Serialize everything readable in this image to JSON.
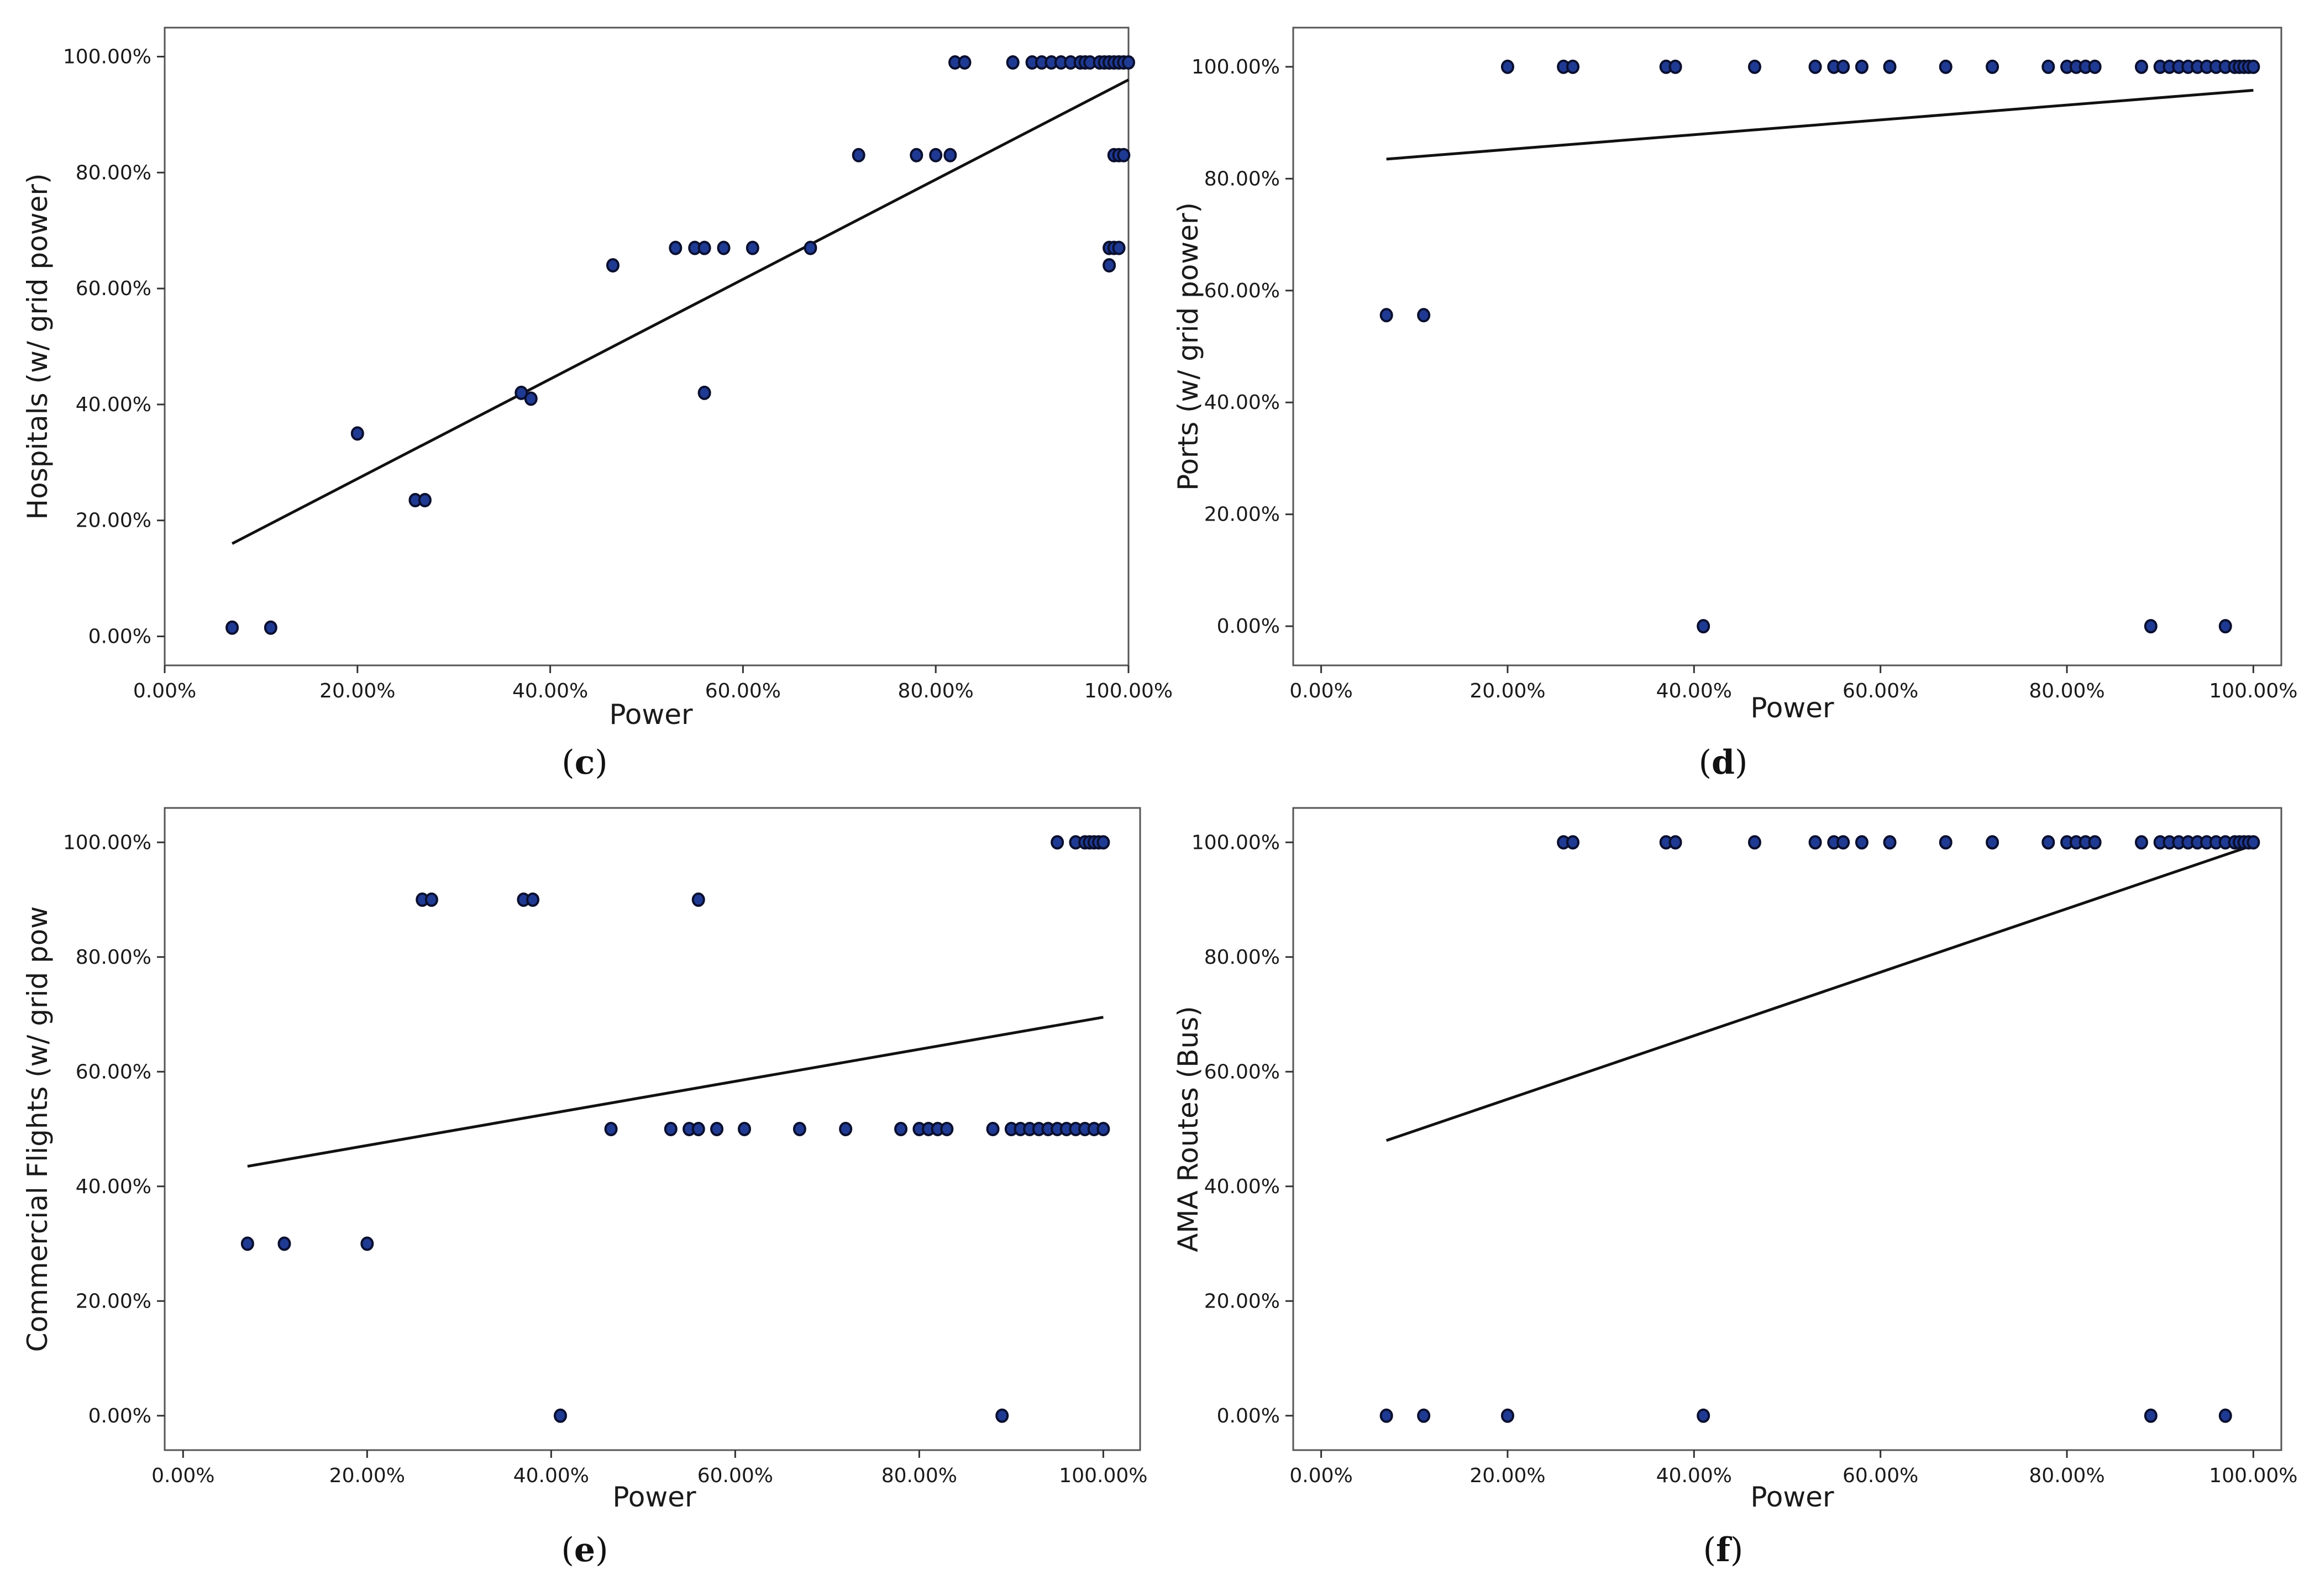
{
  "chart_data": [
    {
      "id": "c",
      "type": "scatter",
      "panel_label": "c",
      "xlabel": "Power",
      "ylabel": "Hospitals (w/ grid power)",
      "xlim": [
        0,
        100
      ],
      "ylim": [
        -5,
        105
      ],
      "xticks": [
        0,
        20,
        40,
        60,
        80,
        100
      ],
      "yticks": [
        0,
        20,
        40,
        60,
        80,
        100
      ],
      "xtick_labels": [
        "0.00%",
        "20.00%",
        "40.00%",
        "60.00%",
        "80.00%",
        "100.00%"
      ],
      "ytick_labels": [
        "0.00%",
        "20.00%",
        "40.00%",
        "60.00%",
        "80.00%",
        "100.00%"
      ],
      "x": [
        7,
        11,
        20,
        26,
        27,
        37,
        38,
        46.5,
        53,
        55,
        56,
        56,
        58,
        61,
        67,
        72,
        78,
        80,
        81.5,
        82,
        83,
        88,
        90,
        91,
        92,
        93,
        94,
        95,
        95.5,
        96,
        97,
        97.5,
        98,
        98,
        98,
        98.5,
        99,
        99,
        99.5,
        100,
        98.5,
        99,
        99.5,
        98,
        98.5,
        99
      ],
      "y": [
        1.5,
        1.5,
        35,
        23.5,
        23.5,
        42,
        41,
        64,
        67,
        67,
        67,
        42,
        67,
        67,
        67,
        83,
        83,
        83,
        83,
        99,
        99,
        99,
        99,
        99,
        99,
        99,
        99,
        99,
        99,
        99,
        99,
        99,
        99,
        99,
        64,
        99,
        99,
        99,
        99,
        99,
        83,
        83,
        83,
        67,
        67,
        67
      ],
      "fit": {
        "x": [
          7,
          100
        ],
        "y": [
          16,
          96
        ]
      }
    },
    {
      "id": "d",
      "type": "scatter",
      "panel_label": "d",
      "xlabel": "Power",
      "ylabel": "Ports (w/ grid power)",
      "xlim": [
        -3,
        103
      ],
      "ylim": [
        -7,
        107
      ],
      "xticks": [
        0,
        20,
        40,
        60,
        80,
        100
      ],
      "yticks": [
        0,
        20,
        40,
        60,
        80,
        100
      ],
      "xtick_labels": [
        "0.00%",
        "20.00%",
        "40.00%",
        "60.00%",
        "80.00%",
        "100.00%"
      ],
      "ytick_labels": [
        "0.00%",
        "20.00%",
        "40.00%",
        "60.00%",
        "80.00%",
        "100.00%"
      ],
      "x": [
        7,
        11,
        20,
        26,
        27,
        37,
        38,
        41,
        46.5,
        53,
        55,
        56,
        58,
        61,
        67,
        72,
        78,
        80,
        81,
        82,
        83,
        88,
        89,
        90,
        91,
        92,
        93,
        94,
        95,
        96,
        97,
        97,
        98,
        98.5,
        99,
        99.5,
        100
      ],
      "y": [
        55.6,
        55.6,
        100,
        100,
        100,
        100,
        100,
        0,
        100,
        100,
        100,
        100,
        100,
        100,
        100,
        100,
        100,
        100,
        100,
        100,
        100,
        100,
        0,
        100,
        100,
        100,
        100,
        100,
        100,
        100,
        100,
        0,
        100,
        100,
        100,
        100,
        100
      ],
      "fit": {
        "x": [
          7,
          100
        ],
        "y": [
          83.5,
          95.8
        ]
      }
    },
    {
      "id": "e",
      "type": "scatter",
      "panel_label": "e",
      "xlabel": "Power",
      "ylabel": "Commercial Flights (w/ grid pow",
      "xlim": [
        -2,
        104
      ],
      "ylim": [
        -6,
        106
      ],
      "xticks": [
        0,
        20,
        40,
        60,
        80,
        100
      ],
      "yticks": [
        0,
        20,
        40,
        60,
        80,
        100
      ],
      "xtick_labels": [
        "0.00%",
        "20.00%",
        "40.00%",
        "60.00%",
        "80.00%",
        "100.00%"
      ],
      "ytick_labels": [
        "0.00%",
        "20.00%",
        "40.00%",
        "60.00%",
        "80.00%",
        "100.00%"
      ],
      "x": [
        7,
        11,
        20,
        26,
        27,
        37,
        38,
        41,
        46.5,
        53,
        55,
        56,
        56,
        58,
        61,
        67,
        72,
        78,
        80,
        81,
        82,
        83,
        88,
        89,
        90,
        91,
        92,
        93,
        94,
        95,
        96,
        97,
        98,
        99,
        100,
        95,
        97,
        98,
        98.5,
        99,
        99.5,
        100
      ],
      "y": [
        30,
        30,
        30,
        90,
        90,
        90,
        90,
        0,
        50,
        50,
        50,
        50,
        90,
        50,
        50,
        50,
        50,
        50,
        50,
        50,
        50,
        50,
        50,
        0,
        50,
        50,
        50,
        50,
        50,
        50,
        50,
        50,
        50,
        50,
        50,
        100,
        100,
        100,
        100,
        100,
        100,
        100
      ],
      "fit": {
        "x": [
          7,
          100
        ],
        "y": [
          43.5,
          69.5
        ]
      }
    },
    {
      "id": "f",
      "type": "scatter",
      "panel_label": "f",
      "xlabel": "Power",
      "ylabel": "AMA Routes (Bus)",
      "xlim": [
        -3,
        103
      ],
      "ylim": [
        -6,
        106
      ],
      "xticks": [
        0,
        20,
        40,
        60,
        80,
        100
      ],
      "yticks": [
        0,
        20,
        40,
        60,
        80,
        100
      ],
      "xtick_labels": [
        "0.00%",
        "20.00%",
        "40.00%",
        "60.00%",
        "80.00%",
        "100.00%"
      ],
      "ytick_labels": [
        "0.00%",
        "20.00%",
        "40.00%",
        "60.00%",
        "80.00%",
        "100.00%"
      ],
      "x": [
        7,
        11,
        20,
        26,
        27,
        37,
        38,
        41,
        46.5,
        53,
        55,
        56,
        58,
        61,
        67,
        72,
        78,
        80,
        81,
        82,
        83,
        88,
        89,
        90,
        91,
        92,
        93,
        94,
        95,
        96,
        97,
        97,
        98,
        98.5,
        99,
        99.5,
        100
      ],
      "y": [
        0,
        0,
        0,
        100,
        100,
        100,
        100,
        0,
        100,
        100,
        100,
        100,
        100,
        100,
        100,
        100,
        100,
        100,
        100,
        100,
        100,
        100,
        0,
        100,
        100,
        100,
        100,
        100,
        100,
        100,
        100,
        0,
        100,
        100,
        100,
        100,
        100
      ],
      "fit": {
        "x": [
          7,
          100
        ],
        "y": [
          48,
          99.5
        ]
      }
    }
  ],
  "colors": {
    "point_fill": "#1f3a93",
    "point_stroke": "#0a0f2e",
    "fit_line": "#111111",
    "frame": "#555555"
  }
}
